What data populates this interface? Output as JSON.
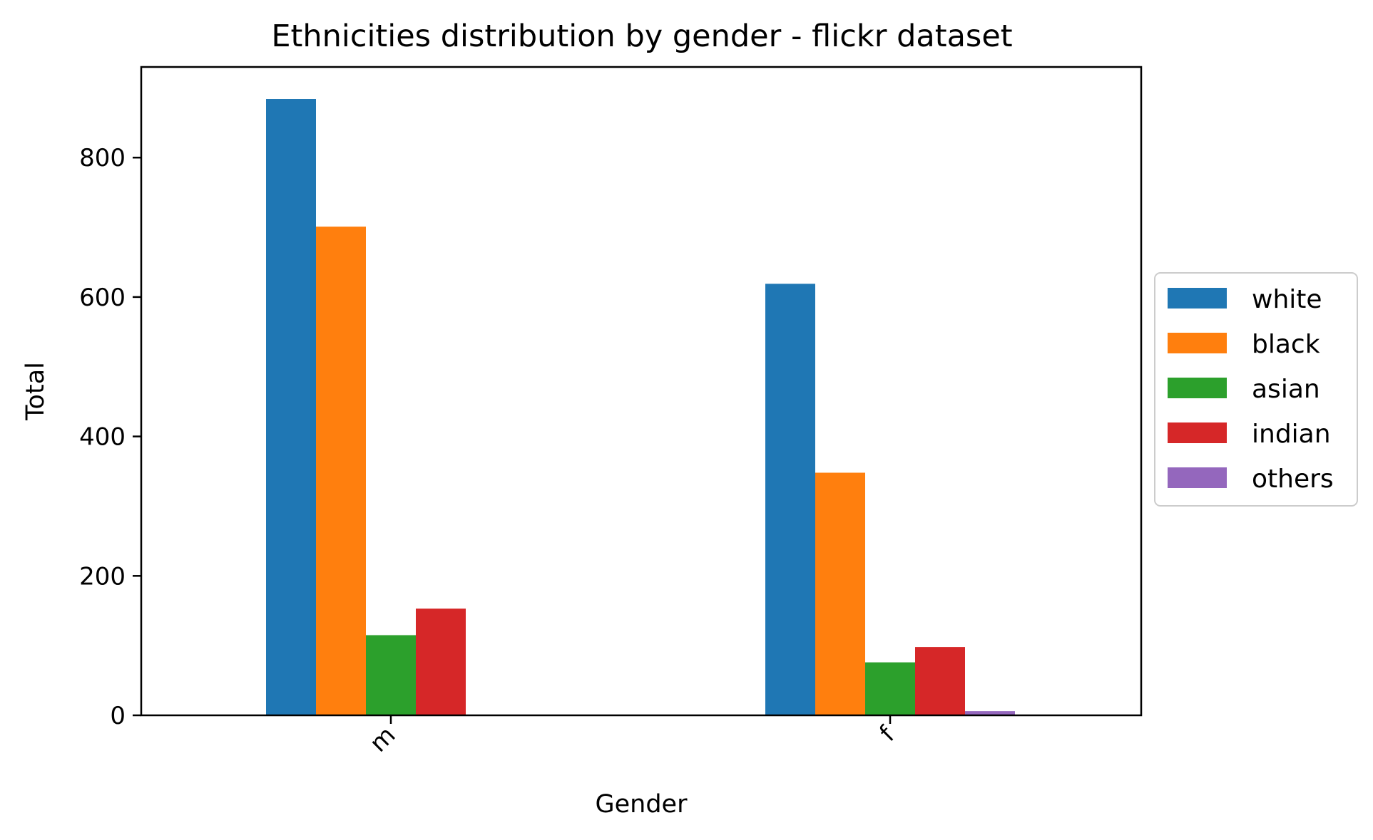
{
  "chart_data": {
    "type": "bar",
    "title": "Ethnicities distribution by gender - flickr dataset",
    "xlabel": "Gender",
    "ylabel": "Total",
    "categories": [
      "m",
      "f"
    ],
    "series": [
      {
        "name": "white",
        "values": [
          884,
          619
        ],
        "color": "#1f77b4"
      },
      {
        "name": "black",
        "values": [
          701,
          348
        ],
        "color": "#ff7f0e"
      },
      {
        "name": "asian",
        "values": [
          115,
          76
        ],
        "color": "#2ca02c"
      },
      {
        "name": "indian",
        "values": [
          153,
          98
        ],
        "color": "#d62728"
      },
      {
        "name": "others",
        "values": [
          1,
          6
        ],
        "color": "#9467bd"
      }
    ],
    "ylim": [
      0,
      930
    ],
    "yticks": [
      0,
      200,
      400,
      600,
      800
    ],
    "ytick_labels": [
      "0",
      "200",
      "400",
      "600",
      "800"
    ],
    "grid": false,
    "legend_position": "right, outside plot"
  }
}
